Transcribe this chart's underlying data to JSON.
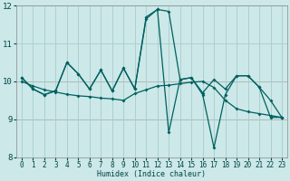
{
  "xlabel": "Humidex (Indice chaleur)",
  "bg_color": "#cce8e8",
  "grid_color": "#aacccc",
  "line_color": "#006060",
  "red_line_color": "#cc6666",
  "xlim": [
    -0.5,
    23.5
  ],
  "ylim": [
    8,
    12
  ],
  "yticks": [
    8,
    9,
    10,
    11,
    12
  ],
  "xticks": [
    0,
    1,
    2,
    3,
    4,
    5,
    6,
    7,
    8,
    9,
    10,
    11,
    12,
    13,
    14,
    15,
    16,
    17,
    18,
    19,
    20,
    21,
    22,
    23
  ],
  "line1_x": [
    0,
    1,
    2,
    3,
    4,
    5,
    6,
    7,
    8,
    9,
    10,
    11,
    12,
    13,
    14,
    15,
    16,
    17,
    18,
    19,
    20,
    21,
    22,
    23
  ],
  "line1_y": [
    10.1,
    9.8,
    9.65,
    9.75,
    10.5,
    10.2,
    9.8,
    10.3,
    9.75,
    10.35,
    9.8,
    11.7,
    11.9,
    11.85,
    10.05,
    10.1,
    9.7,
    10.05,
    9.8,
    10.15,
    10.15,
    9.85,
    9.5,
    9.05
  ],
  "line2_x": [
    0,
    1,
    2,
    3,
    4,
    5,
    6,
    7,
    8,
    9,
    10,
    11,
    12,
    13,
    14,
    15,
    16,
    17,
    18,
    19,
    20,
    21,
    22,
    23
  ],
  "line2_y": [
    10.1,
    9.8,
    9.65,
    9.75,
    10.5,
    10.2,
    9.8,
    10.3,
    9.75,
    10.35,
    9.8,
    11.65,
    11.9,
    8.65,
    10.05,
    10.1,
    9.65,
    8.25,
    9.65,
    10.15,
    10.15,
    9.85,
    9.05,
    9.05
  ],
  "line3_x": [
    0,
    1,
    2,
    3,
    4,
    5,
    6,
    7,
    8,
    9,
    10,
    11,
    12,
    13,
    14,
    15,
    16,
    17,
    18,
    19,
    20,
    21,
    22,
    23
  ],
  "line3_y": [
    10.0,
    9.88,
    9.78,
    9.72,
    9.66,
    9.62,
    9.6,
    9.56,
    9.54,
    9.5,
    9.68,
    9.78,
    9.88,
    9.9,
    9.94,
    9.98,
    10.0,
    9.84,
    9.5,
    9.28,
    9.2,
    9.15,
    9.1,
    9.05
  ]
}
